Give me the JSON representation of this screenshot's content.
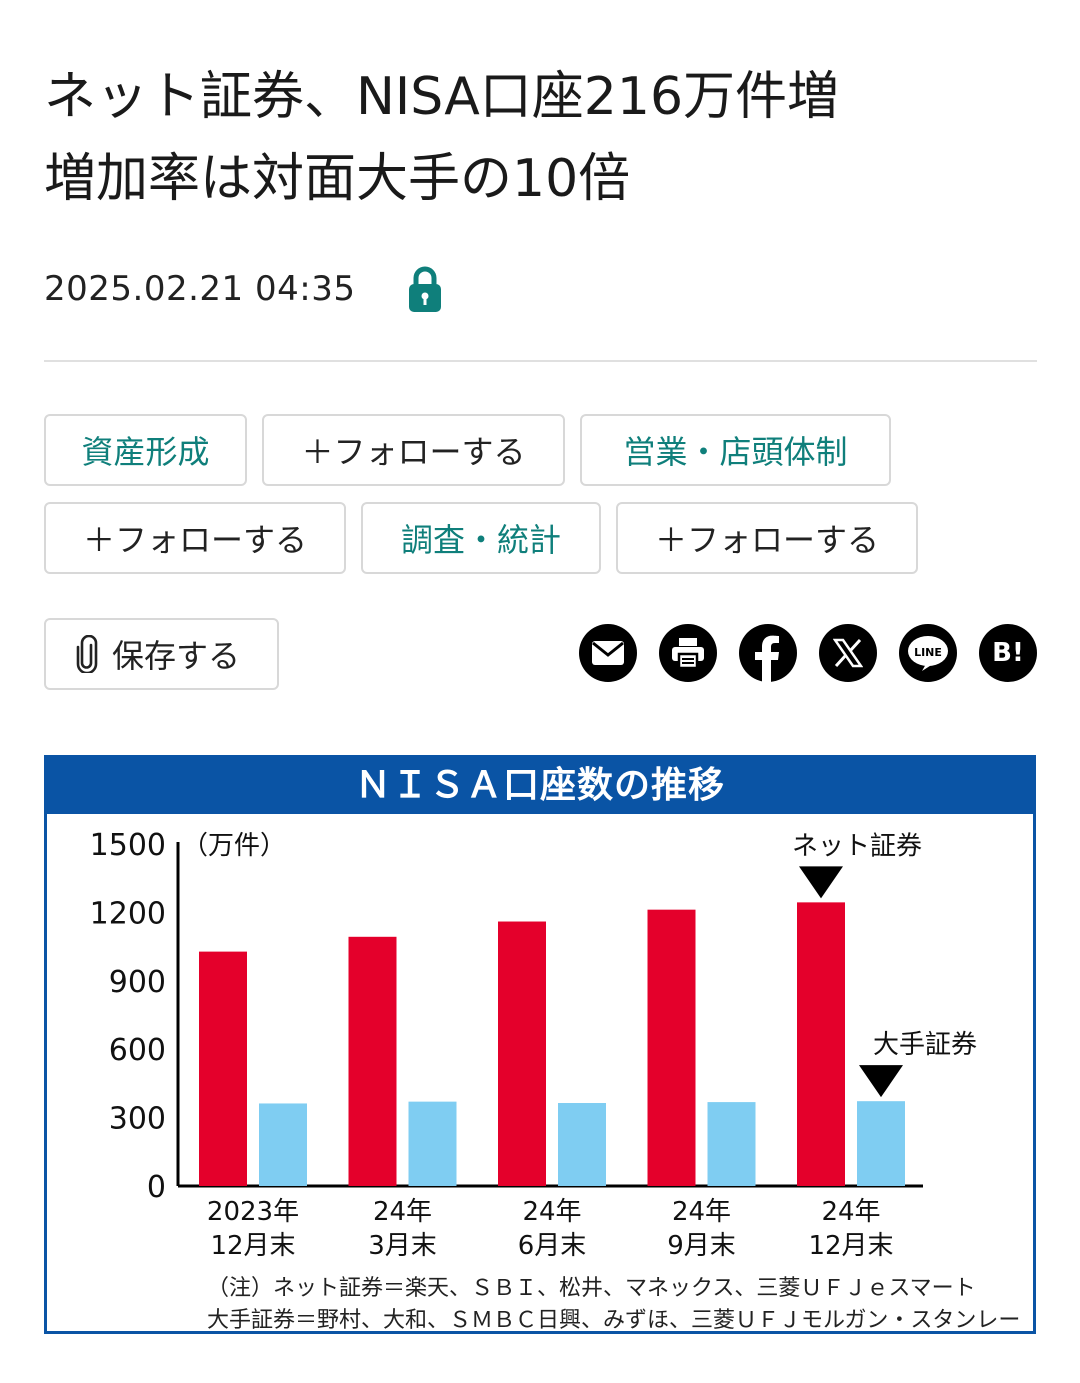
{
  "article": {
    "title_line1": "ネット証券、NISA口座216万件増",
    "title_line2": "増加率は対面大手の10倍",
    "date": "2025.02.21 04:35"
  },
  "tags": [
    {
      "topic": "資産形成",
      "follow": "＋フォローする"
    },
    {
      "topic": "営業・店頭体制",
      "follow": "＋フォローする"
    },
    {
      "topic": "調査・統計",
      "follow": "＋フォローする"
    }
  ],
  "actions": {
    "save_label": "保存する"
  },
  "share_icons": [
    "mail-icon",
    "print-icon",
    "facebook-icon",
    "x-icon",
    "line-icon",
    "hatena-bookmark-icon"
  ],
  "share_text": {
    "line": "LINE",
    "hatena": "B!"
  },
  "colors": {
    "accent": "#0f7f7b",
    "chart_frame": "#0a54a5",
    "net": "#e4002b",
    "major": "#7fcdf2"
  },
  "chart_data": {
    "type": "bar",
    "title": "ＮＩＳＡ口座数の推移",
    "ylabel": "（万件）",
    "ylim": [
      0,
      1500
    ],
    "yticks": [
      "1500",
      "1200",
      "900",
      "600",
      "300",
      "0"
    ],
    "categories": [
      [
        "2023年",
        "12月末"
      ],
      [
        "24年",
        "3月末"
      ],
      [
        "24年",
        "6月末"
      ],
      [
        "24年",
        "9月末"
      ],
      [
        "24年",
        "12月末"
      ]
    ],
    "series": [
      {
        "name": "ネット証券",
        "color": "#e4002b",
        "values": [
          1028,
          1093,
          1160,
          1212,
          1244
        ]
      },
      {
        "name": "大手証券",
        "color": "#7fcdf2",
        "values": [
          362,
          370,
          364,
          368,
          372
        ]
      }
    ],
    "notes": [
      "（注）ネット証券＝楽天、ＳＢＩ、松井、マネックス、三菱ＵＦＪｅスマート",
      "大手証券＝野村、大和、ＳＭＢＣ日興、みずほ、三菱ＵＦＪモルガン・スタンレー"
    ]
  }
}
